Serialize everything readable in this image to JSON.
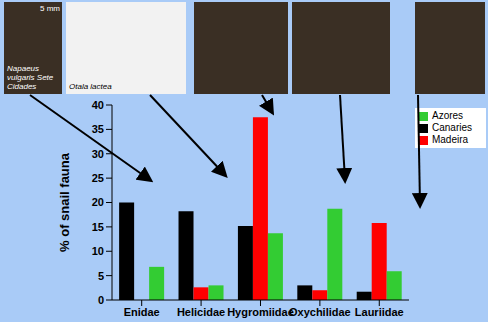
{
  "chart_data": {
    "type": "bar",
    "y_label": "% of snail fauna",
    "categories": [
      "Enidae",
      "Helicidae",
      "Hygromiidae",
      "Oxychilidae",
      "Lauriidae"
    ],
    "series": [
      {
        "name": "Canaries",
        "color": "#000000",
        "values": [
          20,
          18.2,
          15.2,
          3,
          1.7
        ]
      },
      {
        "name": "Madeira",
        "color": "#ff0000",
        "values": [
          0,
          2.6,
          37.5,
          2,
          15.8
        ]
      },
      {
        "name": "Azores",
        "color": "#33cc33",
        "values": [
          6.8,
          3,
          13.7,
          18.7,
          5.9
        ]
      }
    ],
    "ylim": [
      0,
      40
    ],
    "yticks": [
      0,
      5,
      10,
      15,
      20,
      25,
      30,
      35,
      40
    ],
    "grid": false,
    "legend": "upper right",
    "annotations": [
      "Napaeus vulgaris Sete Cidades",
      "Otala lactea",
      "5 mm"
    ]
  }
}
